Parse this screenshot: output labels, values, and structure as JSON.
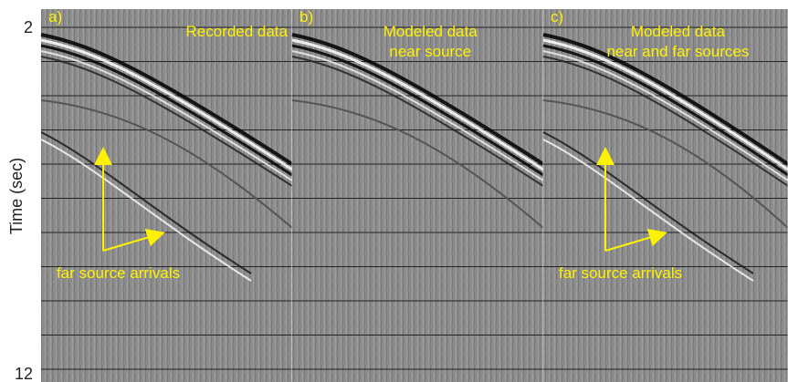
{
  "y_axis": {
    "label": "Time (sec)",
    "ticks": [
      "2",
      "12"
    ]
  },
  "panels": [
    {
      "letter": "a)",
      "title": [
        "Recorded data"
      ],
      "annotation": "far source arrivals"
    },
    {
      "letter": "b)",
      "title": [
        "Modeled data",
        "near source"
      ]
    },
    {
      "letter": "c)",
      "title": [
        "Modeled data",
        "near and far sources"
      ],
      "annotation": "far source arrivals"
    }
  ]
}
